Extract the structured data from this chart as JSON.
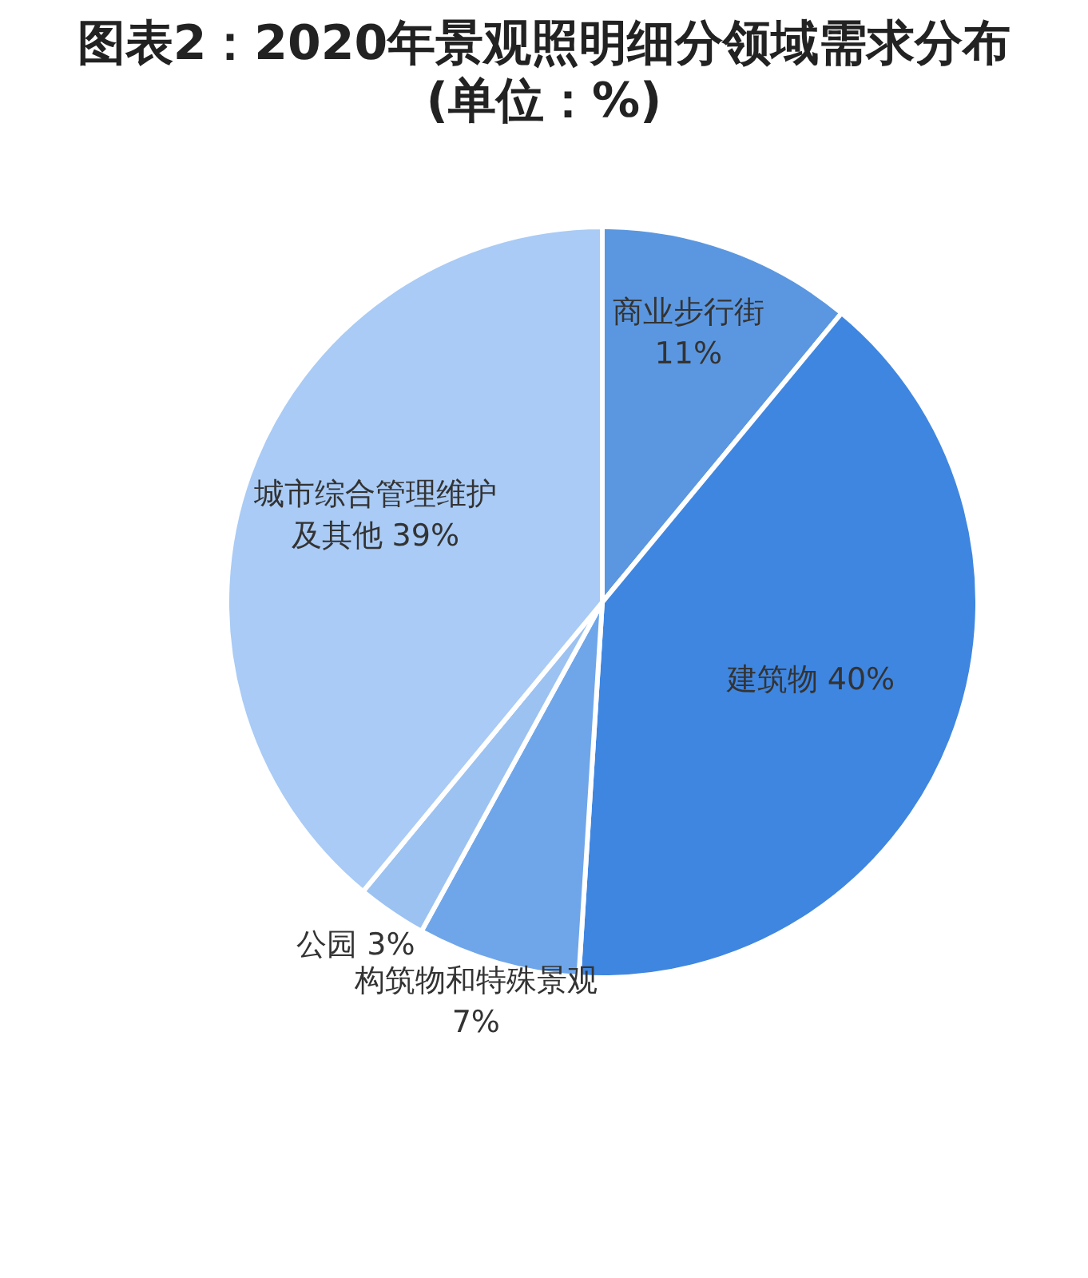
{
  "chart_data": {
    "type": "pie",
    "title": "图表2：2020年景观照明细分领域需求分布",
    "subtitle": "(单位：%)",
    "categories": [
      "商业步行街",
      "建筑物",
      "构筑物和特殊景观",
      "公园",
      "城市综合管理维护及其他"
    ],
    "values": [
      11,
      40,
      7,
      3,
      39
    ],
    "colors": [
      "#5b97e0",
      "#3f86e0",
      "#6fa6ea",
      "#9cc2f2",
      "#a9cbf5"
    ],
    "value_labels": [
      "11%",
      "40%",
      "7%",
      "3%",
      "39%"
    ]
  }
}
